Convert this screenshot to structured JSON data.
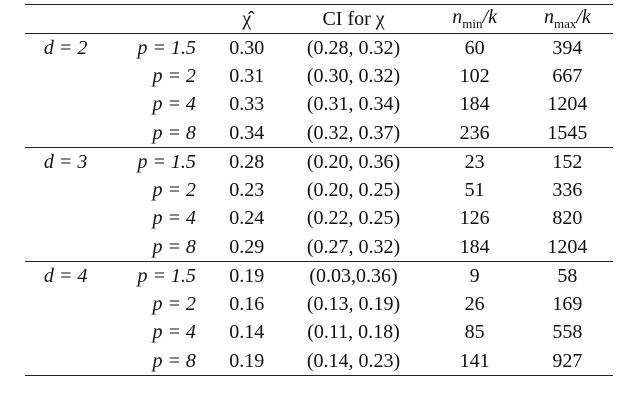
{
  "table": {
    "header": {
      "chi": "χ̂",
      "ci": "CI for χ",
      "nmin": {
        "var": "n",
        "sub": "min",
        "tail": "/k"
      },
      "nmax": {
        "var": "n",
        "sub": "max",
        "tail": "/k"
      }
    },
    "groups": [
      {
        "label": "d = 2",
        "rows": [
          {
            "p": "p = 1.5",
            "chi": "0.30",
            "ci": "(0.28, 0.32)",
            "nmin": "60",
            "nmax": "394"
          },
          {
            "p": "p = 2",
            "chi": "0.31",
            "ci": "(0.30, 0.32)",
            "nmin": "102",
            "nmax": "667"
          },
          {
            "p": "p = 4",
            "chi": "0.33",
            "ci": "(0.31, 0.34)",
            "nmin": "184",
            "nmax": "1204"
          },
          {
            "p": "p = 8",
            "chi": "0.34",
            "ci": "(0.32, 0.37)",
            "nmin": "236",
            "nmax": "1545"
          }
        ]
      },
      {
        "label": "d = 3",
        "rows": [
          {
            "p": "p = 1.5",
            "chi": "0.28",
            "ci": "(0.20, 0.36)",
            "nmin": "23",
            "nmax": "152"
          },
          {
            "p": "p = 2",
            "chi": "0.23",
            "ci": "(0.20, 0.25)",
            "nmin": "51",
            "nmax": "336"
          },
          {
            "p": "p = 4",
            "chi": "0.24",
            "ci": "(0.22, 0.25)",
            "nmin": "126",
            "nmax": "820"
          },
          {
            "p": "p = 8",
            "chi": "0.29",
            "ci": "(0.27, 0.32)",
            "nmin": "184",
            "nmax": "1204"
          }
        ]
      },
      {
        "label": "d = 4",
        "rows": [
          {
            "p": "p = 1.5",
            "chi": "0.19",
            "ci": "(0.03,0.36)",
            "nmin": "9",
            "nmax": "58"
          },
          {
            "p": "p = 2",
            "chi": "0.16",
            "ci": "(0.13, 0.19)",
            "nmin": "26",
            "nmax": "169"
          },
          {
            "p": "p = 4",
            "chi": "0.14",
            "ci": "(0.11, 0.18)",
            "nmin": "85",
            "nmax": "558"
          },
          {
            "p": "p = 8",
            "chi": "0.19",
            "ci": "(0.14, 0.23)",
            "nmin": "141",
            "nmax": "927"
          }
        ]
      }
    ]
  }
}
